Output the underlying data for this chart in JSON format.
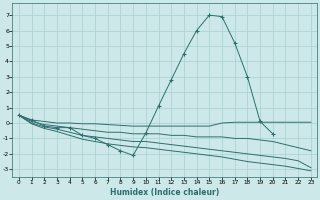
{
  "xlabel": "Humidex (Indice chaleur)",
  "bg_color": "#cde8e8",
  "line_color": "#2d6e6e",
  "grid_color": "#a8d0d0",
  "xlim": [
    -0.5,
    23.5
  ],
  "ylim": [
    -3.5,
    7.8
  ],
  "yticks": [
    -3,
    -2,
    -1,
    0,
    1,
    2,
    3,
    4,
    5,
    6,
    7
  ],
  "xticks": [
    0,
    1,
    2,
    3,
    4,
    5,
    6,
    7,
    8,
    9,
    10,
    11,
    12,
    13,
    14,
    15,
    16,
    17,
    18,
    19,
    20,
    21,
    22,
    23
  ],
  "lines": [
    {
      "x": [
        0,
        1,
        2,
        3,
        4,
        5,
        6,
        7,
        8,
        9,
        10,
        11,
        12,
        13,
        14,
        15,
        16,
        17,
        18,
        19,
        20
      ],
      "y": [
        0.5,
        0.2,
        -0.2,
        -0.3,
        -0.3,
        -0.8,
        -1.0,
        -1.4,
        -1.8,
        -2.1,
        -0.65,
        1.1,
        2.8,
        4.5,
        6.0,
        7.0,
        6.9,
        5.2,
        3.0,
        0.1,
        -0.7
      ],
      "marker": true
    },
    {
      "x": [
        0,
        1,
        2,
        3,
        4,
        5,
        6,
        7,
        8,
        9,
        10,
        11,
        12,
        13,
        14,
        15,
        16,
        17,
        18,
        19,
        20,
        21,
        22,
        23
      ],
      "y": [
        0.5,
        0.2,
        0.1,
        0.0,
        0.0,
        -0.05,
        -0.05,
        -0.1,
        -0.15,
        -0.2,
        -0.2,
        -0.2,
        -0.2,
        -0.2,
        -0.2,
        -0.2,
        0.0,
        0.05,
        0.05,
        0.05,
        0.05,
        0.05,
        0.05,
        0.05
      ],
      "marker": false
    },
    {
      "x": [
        0,
        1,
        2,
        3,
        4,
        5,
        6,
        7,
        8,
        9,
        10,
        11,
        12,
        13,
        14,
        15,
        16,
        17,
        18,
        19,
        20,
        21,
        22,
        23
      ],
      "y": [
        0.5,
        0.1,
        -0.1,
        -0.2,
        -0.3,
        -0.4,
        -0.5,
        -0.6,
        -0.6,
        -0.7,
        -0.7,
        -0.7,
        -0.8,
        -0.8,
        -0.9,
        -0.9,
        -0.9,
        -1.0,
        -1.0,
        -1.1,
        -1.2,
        -1.4,
        -1.6,
        -1.8
      ],
      "marker": false
    },
    {
      "x": [
        0,
        1,
        2,
        3,
        4,
        5,
        6,
        7,
        8,
        9,
        10,
        11,
        12,
        13,
        14,
        15,
        16,
        17,
        18,
        19,
        20,
        21,
        22,
        23
      ],
      "y": [
        0.5,
        0.0,
        -0.25,
        -0.4,
        -0.6,
        -0.8,
        -0.9,
        -1.0,
        -1.1,
        -1.2,
        -1.2,
        -1.3,
        -1.4,
        -1.5,
        -1.6,
        -1.7,
        -1.8,
        -1.9,
        -2.0,
        -2.1,
        -2.2,
        -2.3,
        -2.45,
        -2.9
      ],
      "marker": false
    },
    {
      "x": [
        0,
        1,
        2,
        3,
        4,
        5,
        6,
        7,
        8,
        9,
        10,
        11,
        12,
        13,
        14,
        15,
        16,
        17,
        18,
        19,
        20,
        21,
        22,
        23
      ],
      "y": [
        0.5,
        -0.05,
        -0.35,
        -0.55,
        -0.8,
        -1.05,
        -1.2,
        -1.35,
        -1.45,
        -1.55,
        -1.6,
        -1.7,
        -1.8,
        -1.9,
        -2.0,
        -2.1,
        -2.2,
        -2.35,
        -2.5,
        -2.6,
        -2.7,
        -2.8,
        -2.95,
        -3.1
      ],
      "marker": false
    }
  ]
}
